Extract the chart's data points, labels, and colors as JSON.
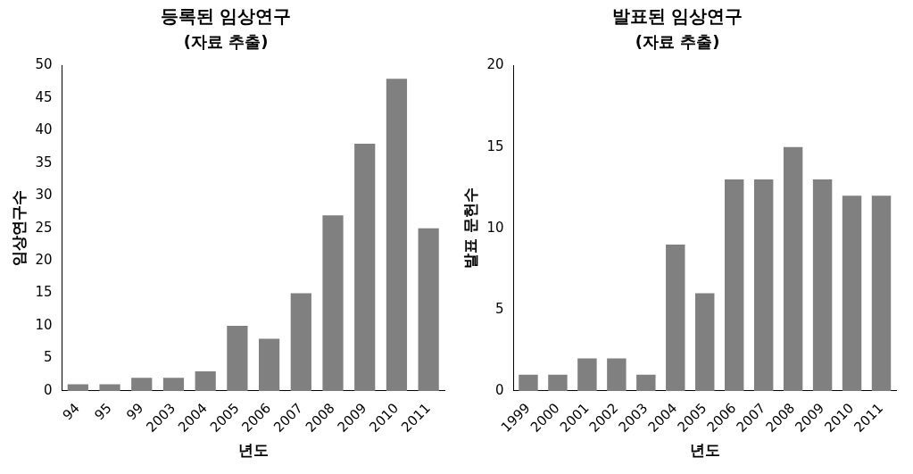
{
  "chart_data": [
    {
      "type": "bar",
      "title": "등록된 임상연구",
      "subtitle": "(자료 추출)",
      "xlabel": "년도",
      "ylabel": "임상연구수",
      "categories": [
        "94",
        "95",
        "99",
        "2003",
        "2004",
        "2005",
        "2006",
        "2007",
        "2008",
        "2009",
        "2010",
        "2011"
      ],
      "values": [
        1,
        1,
        2,
        2,
        3,
        10,
        8,
        15,
        27,
        38,
        48,
        25
      ],
      "color": "#808080",
      "ylim": [
        0,
        50
      ],
      "yticks": [
        0,
        5,
        10,
        15,
        20,
        25,
        30,
        35,
        40,
        45,
        50
      ],
      "grid": false,
      "legend": false
    },
    {
      "type": "bar",
      "title": "발표된 임상연구",
      "subtitle": "(자료 추출)",
      "xlabel": "년도",
      "ylabel": "발표 문헌수",
      "categories": [
        "1999",
        "2000",
        "2001",
        "2002",
        "2003",
        "2004",
        "2005",
        "2006",
        "2007",
        "2008",
        "2009",
        "2010",
        "2011"
      ],
      "values": [
        1,
        1,
        2,
        2,
        1,
        9,
        6,
        13,
        13,
        15,
        13,
        12,
        12
      ],
      "color": "#808080",
      "ylim": [
        0,
        20
      ],
      "yticks": [
        0,
        5,
        10,
        15,
        20
      ],
      "grid": false,
      "legend": false
    }
  ]
}
